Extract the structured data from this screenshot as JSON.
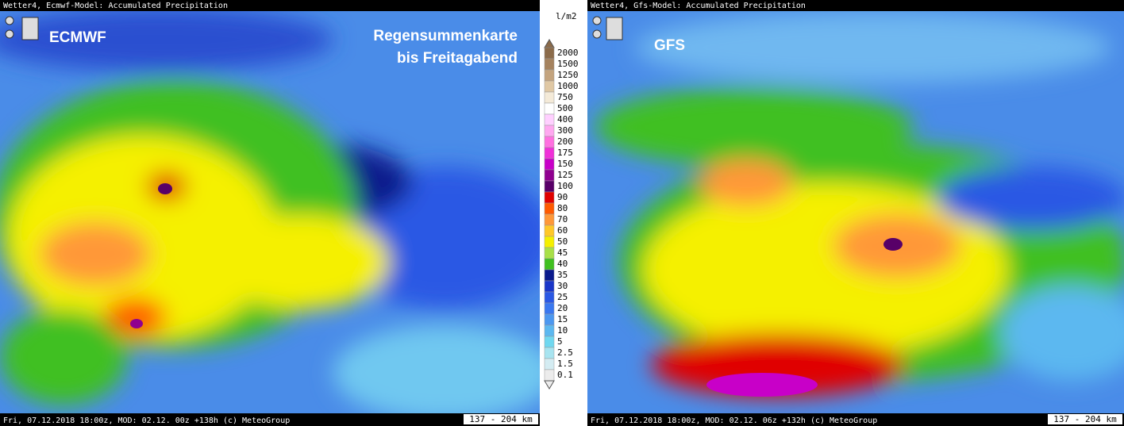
{
  "panels": [
    {
      "header": "Wetter4, Ecmwf-Model: Accumulated Precipitation",
      "model": "ECMWF",
      "overlay": [
        "Regensummenkarte",
        "bis Freitagabend"
      ],
      "footer": "Fri, 07.12.2018 18:00z, MOD: 02.12. 00z +138h (c) MeteoGroup",
      "scale": "137 - 204 km"
    },
    {
      "header": "Wetter4, Gfs-Model: Accumulated Precipitation",
      "model": "GFS",
      "overlay": [],
      "footer": "Fri, 07.12.2018 18:00z, MOD: 02.12. 06z +132h (c) MeteoGroup",
      "scale": "137 - 204 km"
    }
  ],
  "legend": {
    "unit": "l/m2",
    "labels": [
      "2000",
      "1500",
      "1250",
      "1000",
      "750",
      "500",
      "400",
      "300",
      "200",
      "175",
      "150",
      "125",
      "100",
      "90",
      "80",
      "70",
      "60",
      "50",
      "45",
      "40",
      "35",
      "30",
      "25",
      "20",
      "15",
      "10",
      "5",
      "2.5",
      "1.5",
      "0.1"
    ],
    "colors": [
      "#8b6b4a",
      "#a5825e",
      "#c4a47e",
      "#e0c8a4",
      "#f4ead8",
      "#ffffff",
      "#ffd0ff",
      "#ffa8f0",
      "#ff70e0",
      "#f030d8",
      "#c800c8",
      "#900090",
      "#580068",
      "#e00000",
      "#ff5a00",
      "#ff9838",
      "#ffc828",
      "#f5f000",
      "#a8e048",
      "#40c020",
      "#0a1a8c",
      "#1a36c8",
      "#2a58e4",
      "#3a78f0",
      "#4c98f0",
      "#5cb8f0",
      "#70d8f0",
      "#a8e4f0",
      "#d4ecf2",
      "#ececec"
    ]
  }
}
